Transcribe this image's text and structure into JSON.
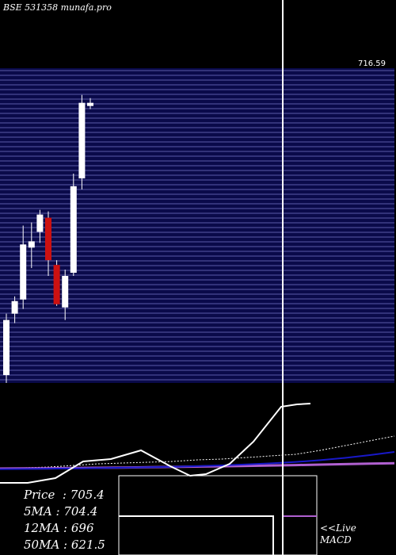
{
  "header": {
    "title": "BSE 531358  munafa.pro"
  },
  "stats": [
    {
      "label": "Price",
      "value": "705.4"
    },
    {
      "label": "5MA",
      "value": "704.4"
    },
    {
      "label": "12MA",
      "value": "696"
    },
    {
      "label": "50MA",
      "value": "621.5"
    }
  ],
  "macd_label": {
    "line1": "<<Live",
    "line2": "MACD"
  },
  "colors": {
    "background": "#000000",
    "price_band": "#0a0a4a",
    "grid_line": "#5a5aa8",
    "bull": "#ffffff",
    "bear": "#cc1111",
    "ma_short": "#1818c8",
    "ma_long": "#b060d0",
    "text": "#ffffff"
  },
  "chart_data": {
    "type": "candlestick",
    "title": "BSE 531358  munafa.pro",
    "ylim": [
      560,
      760
    ],
    "price_axis_label_visible": "716.59",
    "candles": [
      {
        "o": 565,
        "h": 604,
        "l": 560,
        "c": 600
      },
      {
        "o": 604,
        "h": 615,
        "l": 598,
        "c": 612
      },
      {
        "o": 613,
        "h": 660,
        "l": 607,
        "c": 648
      },
      {
        "o": 646,
        "h": 662,
        "l": 633,
        "c": 650
      },
      {
        "o": 656,
        "h": 670,
        "l": 649,
        "c": 667
      },
      {
        "o": 665,
        "h": 669,
        "l": 628,
        "c": 638
      },
      {
        "o": 635,
        "h": 638,
        "l": 609,
        "c": 610
      },
      {
        "o": 608,
        "h": 632,
        "l": 600,
        "c": 628
      },
      {
        "o": 630,
        "h": 693,
        "l": 628,
        "c": 685
      },
      {
        "o": 690,
        "h": 743,
        "l": 683,
        "c": 738
      },
      {
        "o": 736,
        "h": 741,
        "l": 734,
        "c": 738
      }
    ],
    "ma_short": [
      0.3,
      0.5,
      0.9,
      1.2,
      1.6,
      2.1,
      2.7,
      3.3,
      4.1,
      5.0,
      6.2,
      7.6,
      9.4,
      11.6,
      14.5,
      18.0,
      22.0
    ],
    "ma_long": [
      1.0,
      1.2,
      1.4,
      1.7,
      2.0,
      2.3,
      2.7,
      3.1,
      3.5,
      3.9,
      4.4,
      4.9,
      5.4,
      6.0,
      6.6,
      7.2,
      7.8
    ],
    "volume_line": [
      2,
      2,
      3,
      5,
      7,
      8,
      9,
      10,
      12,
      13,
      15,
      17,
      19,
      24,
      30,
      36,
      42
    ]
  }
}
